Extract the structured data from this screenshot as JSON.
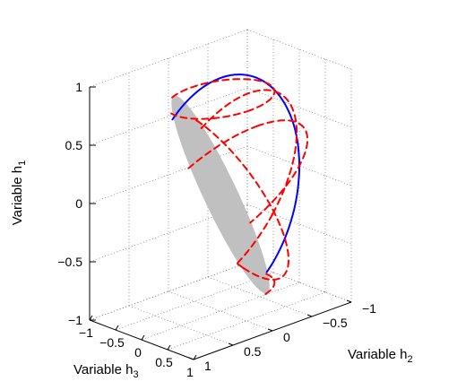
{
  "chart_data": {
    "type": "surface",
    "title": "",
    "xlabel": "Variable h",
    "xlabel_sub": "3",
    "ylabel": "Variable h",
    "ylabel_sub": "2",
    "zlabel": "Variable h",
    "zlabel_sub": "1",
    "xlim": [
      -1,
      1
    ],
    "ylim": [
      -1,
      1
    ],
    "zlim": [
      -1,
      1
    ],
    "x_ticks": [
      "−1",
      "−0.5",
      "0",
      "0.5",
      "1"
    ],
    "y_ticks": [
      "−1",
      "−0.5",
      "0",
      "0.5",
      "1"
    ],
    "z_ticks": [
      "−1",
      "−0.5",
      "0",
      "0.5",
      "1"
    ],
    "grid": true,
    "surface": {
      "shape": "unit sphere",
      "center": [
        0,
        0,
        0
      ],
      "radius": 1,
      "color": "#c0c0c0"
    },
    "series": [
      {
        "curve": "great circle",
        "normal": [
          1,
          0,
          0
        ],
        "color": "#0000ff",
        "style": "solid"
      },
      {
        "curve": "great circle",
        "normal": [
          0,
          0.707,
          0.707
        ],
        "color": "#ff0000",
        "style": "dashed"
      },
      {
        "curve": "great circle",
        "normal": [
          0.5,
          -0.5,
          0.707
        ],
        "color": "#ff0000",
        "style": "dashed"
      },
      {
        "curve": "great circle",
        "normal": [
          0.707,
          0,
          -0.707
        ],
        "color": "#ff0000",
        "style": "dashed"
      },
      {
        "curve": "circle of latitude",
        "plane": "h1 = 0.82",
        "color": "#ff0000",
        "style": "dashed"
      },
      {
        "curve": "circle of latitude",
        "plane": "h1 = -0.82",
        "color": "#ff0000",
        "style": "dashed"
      }
    ]
  }
}
